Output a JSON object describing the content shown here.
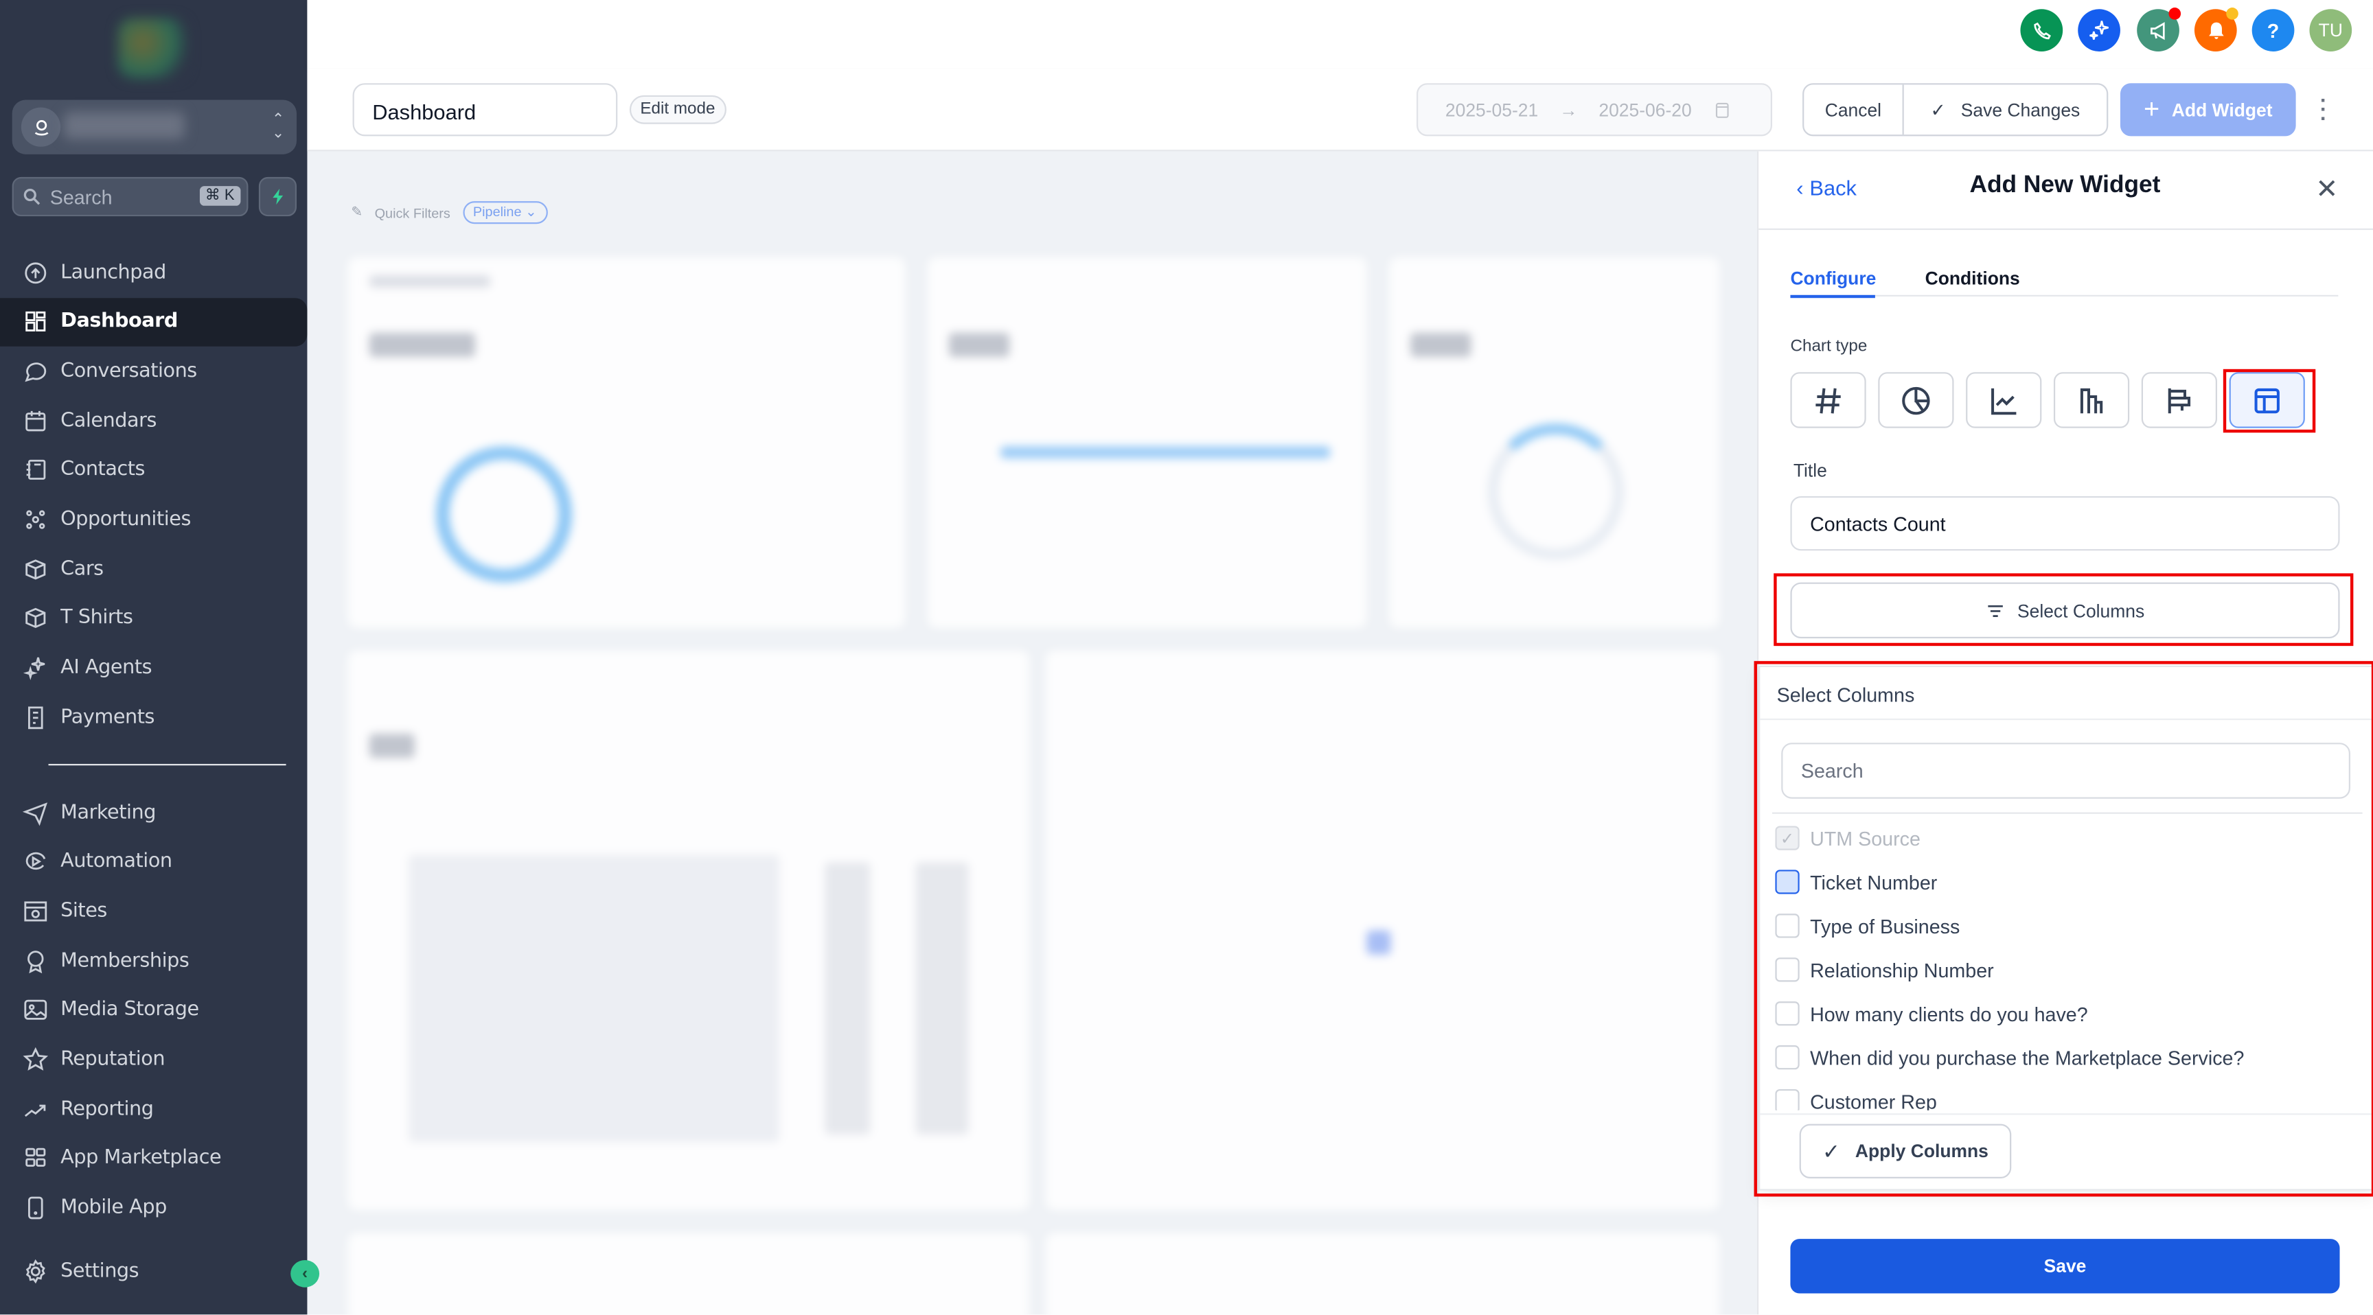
{
  "sidebar": {
    "search_placeholder": "Search",
    "search_shortcut": "⌘ K",
    "items_top": [
      {
        "label": "Launchpad",
        "icon": "rocket-icon"
      },
      {
        "label": "Dashboard",
        "icon": "grid-icon",
        "active": true
      },
      {
        "label": "Conversations",
        "icon": "chat-icon"
      },
      {
        "label": "Calendars",
        "icon": "calendar-icon"
      },
      {
        "label": "Contacts",
        "icon": "contacts-icon"
      },
      {
        "label": "Opportunities",
        "icon": "opportunities-icon"
      },
      {
        "label": "Cars",
        "icon": "box-icon"
      },
      {
        "label": "T Shirts",
        "icon": "box-icon"
      },
      {
        "label": "AI Agents",
        "icon": "sparkle-icon"
      },
      {
        "label": "Payments",
        "icon": "receipt-icon"
      }
    ],
    "items_bottom": [
      {
        "label": "Marketing",
        "icon": "send-icon"
      },
      {
        "label": "Automation",
        "icon": "automation-icon"
      },
      {
        "label": "Sites",
        "icon": "globe-window-icon"
      },
      {
        "label": "Memberships",
        "icon": "badge-icon"
      },
      {
        "label": "Media Storage",
        "icon": "image-icon"
      },
      {
        "label": "Reputation",
        "icon": "star-icon"
      },
      {
        "label": "Reporting",
        "icon": "trend-icon"
      },
      {
        "label": "App Marketplace",
        "icon": "apps-icon"
      },
      {
        "label": "Mobile App",
        "icon": "mobile-icon"
      }
    ],
    "settings_label": "Settings"
  },
  "topbar": {
    "avatar_initials": "TU",
    "icons": [
      {
        "name": "phone-icon",
        "color": "#079455"
      },
      {
        "name": "sparkle-icon",
        "color": "#155eef"
      },
      {
        "name": "megaphone-icon",
        "color": "#43967c"
      },
      {
        "name": "bell-icon",
        "color": "#ff6a00"
      },
      {
        "name": "help-icon",
        "color": "#1e88f0"
      }
    ]
  },
  "header": {
    "dashboard_name": "Dashboard",
    "edit_mode_badge": "Edit mode",
    "date_start": "2025-05-21",
    "date_end": "2025-06-20",
    "cancel_label": "Cancel",
    "save_changes_label": "Save Changes",
    "add_widget_label": "Add Widget"
  },
  "quick_filters": {
    "label": "Quick Filters",
    "pill": "Pipeline"
  },
  "panel": {
    "back_label": "Back",
    "title": "Add New Widget",
    "tabs": [
      {
        "label": "Configure",
        "active": true
      },
      {
        "label": "Conditions"
      }
    ],
    "chart_type_label": "Chart type",
    "chart_types": [
      "number",
      "pie",
      "line",
      "bar",
      "horizontal-bar",
      "table"
    ],
    "selected_chart_type": "table",
    "title_label": "Title",
    "title_value": "Contacts Count",
    "select_columns_button": "Select Columns",
    "save_label": "Save",
    "accent": "#1a5ae0"
  },
  "columns_popover": {
    "header": "Select Columns",
    "search_placeholder": "Search",
    "items": [
      {
        "label": "UTM Source",
        "state": "checked-disabled"
      },
      {
        "label": "Ticket Number",
        "state": "focused"
      },
      {
        "label": "Type of Business",
        "state": "unchecked"
      },
      {
        "label": "Relationship Number",
        "state": "unchecked"
      },
      {
        "label": "How many clients do you have?",
        "state": "unchecked"
      },
      {
        "label": "When did you purchase the Marketplace Service?",
        "state": "unchecked"
      },
      {
        "label": "Customer Rep",
        "state": "unchecked"
      }
    ],
    "apply_label": "Apply Columns"
  }
}
